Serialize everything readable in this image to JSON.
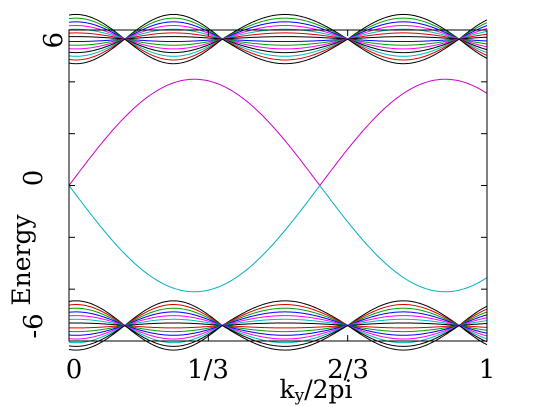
{
  "chart_data": {
    "type": "line",
    "title": "",
    "xlabel": "k",
    "xlabel_sub": "y",
    "xlabel_rest": "/2pi",
    "ylabel": "Energy",
    "xlim": [
      0,
      1
    ],
    "ylim": [
      -6,
      6
    ],
    "xticks": [
      0,
      0.3333,
      0.6667,
      1
    ],
    "xtick_labels": [
      "0",
      "1/3",
      "2/3",
      "1"
    ],
    "yticks": [
      -6,
      0,
      6
    ],
    "ytick_labels": [
      "-6",
      "0",
      "6"
    ],
    "grid": false,
    "legend": "none",
    "edge_state_amplitude": 4.1,
    "edge_state_period": 0.6,
    "edge_states": [
      {
        "color": "#cc00cc",
        "x": [
          0,
          0.15,
          0.3,
          0.45,
          0.5,
          0.6,
          0.75,
          0.9,
          1.0
        ],
        "y": [
          0.0,
          2.9,
          4.1,
          2.9,
          1.4,
          0.0,
          2.9,
          4.1,
          0.0
        ]
      },
      {
        "color": "#00b0c0",
        "x": [
          0,
          0.15,
          0.3,
          0.45,
          0.5,
          0.6,
          0.75,
          0.9,
          1.0
        ],
        "y": [
          0.0,
          -2.9,
          -4.1,
          -2.9,
          -1.4,
          0.0,
          -2.9,
          -4.1,
          0.0
        ]
      }
    ],
    "bulk_band_node_x": [
      0.1333,
      0.3667,
      0.6667,
      0.9333
    ],
    "bulk_band_upper": {
      "center": 5.65,
      "max_halfwidth": 0.95,
      "lines": [
        {
          "offset": 1.0,
          "color": "#000000"
        },
        {
          "offset": 0.85,
          "color": "#00a000"
        },
        {
          "offset": 0.7,
          "color": "#0000ff"
        },
        {
          "offset": 0.55,
          "color": "#ff00ff"
        },
        {
          "offset": 0.4,
          "color": "#00bbbb"
        },
        {
          "offset": 0.25,
          "color": "#dd0000"
        },
        {
          "offset": 0.1,
          "color": "#000000"
        },
        {
          "offset": -0.1,
          "color": "#0000ff"
        },
        {
          "offset": -0.25,
          "color": "#00a000"
        },
        {
          "offset": -0.4,
          "color": "#ff00ff"
        },
        {
          "offset": -0.55,
          "color": "#000000"
        },
        {
          "offset": -0.7,
          "color": "#00bbbb"
        },
        {
          "offset": -0.85,
          "color": "#dd0000"
        },
        {
          "offset": -1.0,
          "color": "#000000"
        }
      ]
    },
    "bulk_band_lower": {
      "center": -5.4,
      "max_halfwidth": 0.95,
      "lines": [
        {
          "offset": 1.0,
          "color": "#000000"
        },
        {
          "offset": 0.85,
          "color": "#dd0000"
        },
        {
          "offset": 0.7,
          "color": "#00a000"
        },
        {
          "offset": 0.55,
          "color": "#0000ff"
        },
        {
          "offset": 0.4,
          "color": "#ff00ff"
        },
        {
          "offset": 0.25,
          "color": "#00bbbb"
        },
        {
          "offset": 0.1,
          "color": "#000000"
        },
        {
          "offset": -0.1,
          "color": "#dd0000"
        },
        {
          "offset": -0.25,
          "color": "#00a000"
        },
        {
          "offset": -0.4,
          "color": "#0000ff"
        },
        {
          "offset": -0.55,
          "color": "#ff00ff"
        },
        {
          "offset": -0.7,
          "color": "#00bbbb"
        },
        {
          "offset": -0.85,
          "color": "#000000"
        },
        {
          "offset": -1.0,
          "color": "#000000"
        }
      ]
    }
  }
}
